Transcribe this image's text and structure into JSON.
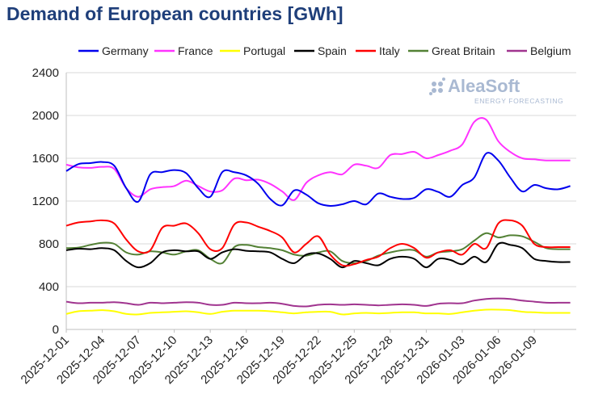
{
  "chart_data": {
    "type": "line",
    "title": "Demand of European countries [GWh]",
    "ylim": [
      0,
      2400
    ],
    "yticks": [
      0,
      400,
      800,
      1200,
      1600,
      2000,
      2400
    ],
    "xlabels": [
      "2025-12-01",
      "2025-12-04",
      "2025-12-07",
      "2025-12-10",
      "2025-12-13",
      "2025-12-16",
      "2025-12-19",
      "2025-12-22",
      "2025-12-25",
      "2025-12-28",
      "2025-12-31",
      "2026-01-03",
      "2026-01-06",
      "2026-01-09"
    ],
    "xlim_days": [
      0,
      42.5
    ],
    "x": [
      "2025-12-01",
      "2025-12-02",
      "2025-12-03",
      "2025-12-04",
      "2025-12-05",
      "2025-12-06",
      "2025-12-07",
      "2025-12-08",
      "2025-12-09",
      "2025-12-10",
      "2025-12-11",
      "2025-12-12",
      "2025-12-13",
      "2025-12-14",
      "2025-12-15",
      "2025-12-16",
      "2025-12-17",
      "2025-12-18",
      "2025-12-19",
      "2025-12-20",
      "2025-12-21",
      "2025-12-22",
      "2025-12-23",
      "2025-12-24",
      "2025-12-25",
      "2025-12-26",
      "2025-12-27",
      "2025-12-28",
      "2025-12-29",
      "2025-12-30",
      "2025-12-31",
      "2026-01-01",
      "2026-01-02",
      "2026-01-03",
      "2026-01-04",
      "2026-01-05",
      "2026-01-06",
      "2026-01-07",
      "2026-01-08",
      "2026-01-09",
      "2026-01-10",
      "2026-01-11",
      "2026-01-12"
    ],
    "grid": true,
    "legend_position": "top",
    "series": [
      {
        "name": "Germany",
        "color": "#0000ee",
        "values": [
          1480,
          1545,
          1555,
          1565,
          1530,
          1320,
          1195,
          1450,
          1470,
          1490,
          1460,
          1320,
          1240,
          1470,
          1470,
          1440,
          1360,
          1220,
          1160,
          1300,
          1260,
          1180,
          1155,
          1170,
          1200,
          1170,
          1270,
          1240,
          1220,
          1230,
          1310,
          1285,
          1240,
          1350,
          1420,
          1645,
          1580,
          1420,
          1290,
          1350,
          1320,
          1310,
          1340
        ]
      },
      {
        "name": "France",
        "color": "#ff33ff",
        "values": [
          1540,
          1515,
          1510,
          1520,
          1500,
          1320,
          1240,
          1310,
          1330,
          1340,
          1390,
          1340,
          1290,
          1300,
          1410,
          1395,
          1400,
          1360,
          1290,
          1210,
          1370,
          1440,
          1470,
          1450,
          1540,
          1530,
          1510,
          1630,
          1640,
          1660,
          1600,
          1630,
          1670,
          1730,
          1940,
          1960,
          1760,
          1660,
          1600,
          1590,
          1580,
          1580,
          1580
        ]
      },
      {
        "name": "Portugal",
        "color": "#ffff00",
        "values": [
          145,
          170,
          175,
          180,
          170,
          145,
          140,
          155,
          160,
          165,
          170,
          160,
          145,
          165,
          175,
          175,
          175,
          170,
          160,
          150,
          160,
          165,
          165,
          140,
          150,
          155,
          150,
          155,
          160,
          160,
          150,
          150,
          145,
          160,
          175,
          185,
          185,
          180,
          165,
          160,
          155,
          155,
          155
        ]
      },
      {
        "name": "Spain",
        "color": "#000000",
        "values": [
          740,
          755,
          750,
          760,
          740,
          640,
          580,
          620,
          720,
          740,
          730,
          730,
          660,
          720,
          750,
          735,
          730,
          720,
          660,
          620,
          700,
          710,
          660,
          580,
          640,
          620,
          600,
          660,
          680,
          660,
          580,
          660,
          650,
          610,
          680,
          630,
          800,
          790,
          760,
          660,
          640,
          630,
          630
        ]
      },
      {
        "name": "Italy",
        "color": "#ff0000",
        "values": [
          970,
          1000,
          1010,
          1020,
          990,
          840,
          730,
          740,
          950,
          970,
          990,
          900,
          750,
          760,
          980,
          1000,
          960,
          920,
          860,
          720,
          800,
          870,
          700,
          600,
          610,
          650,
          680,
          760,
          800,
          760,
          670,
          720,
          740,
          700,
          800,
          760,
          990,
          1020,
          970,
          800,
          770,
          770,
          770
        ]
      },
      {
        "name": "Great Britain",
        "color": "#538135",
        "values": [
          760,
          765,
          790,
          810,
          800,
          720,
          700,
          730,
          720,
          700,
          730,
          740,
          660,
          620,
          770,
          790,
          770,
          760,
          740,
          700,
          690,
          720,
          730,
          640,
          620,
          640,
          690,
          720,
          740,
          740,
          680,
          720,
          730,
          750,
          830,
          900,
          860,
          880,
          870,
          820,
          760,
          750,
          750
        ]
      },
      {
        "name": "Belgium",
        "color": "#a0348f",
        "values": [
          260,
          245,
          250,
          250,
          255,
          245,
          230,
          250,
          245,
          250,
          255,
          250,
          230,
          230,
          250,
          245,
          245,
          250,
          240,
          220,
          215,
          230,
          235,
          230,
          235,
          230,
          225,
          230,
          235,
          230,
          220,
          240,
          245,
          245,
          270,
          285,
          290,
          285,
          270,
          260,
          250,
          250,
          250
        ]
      }
    ]
  },
  "watermark": {
    "name": "AleaSoft",
    "tagline": "ENERGY FORECASTING"
  }
}
